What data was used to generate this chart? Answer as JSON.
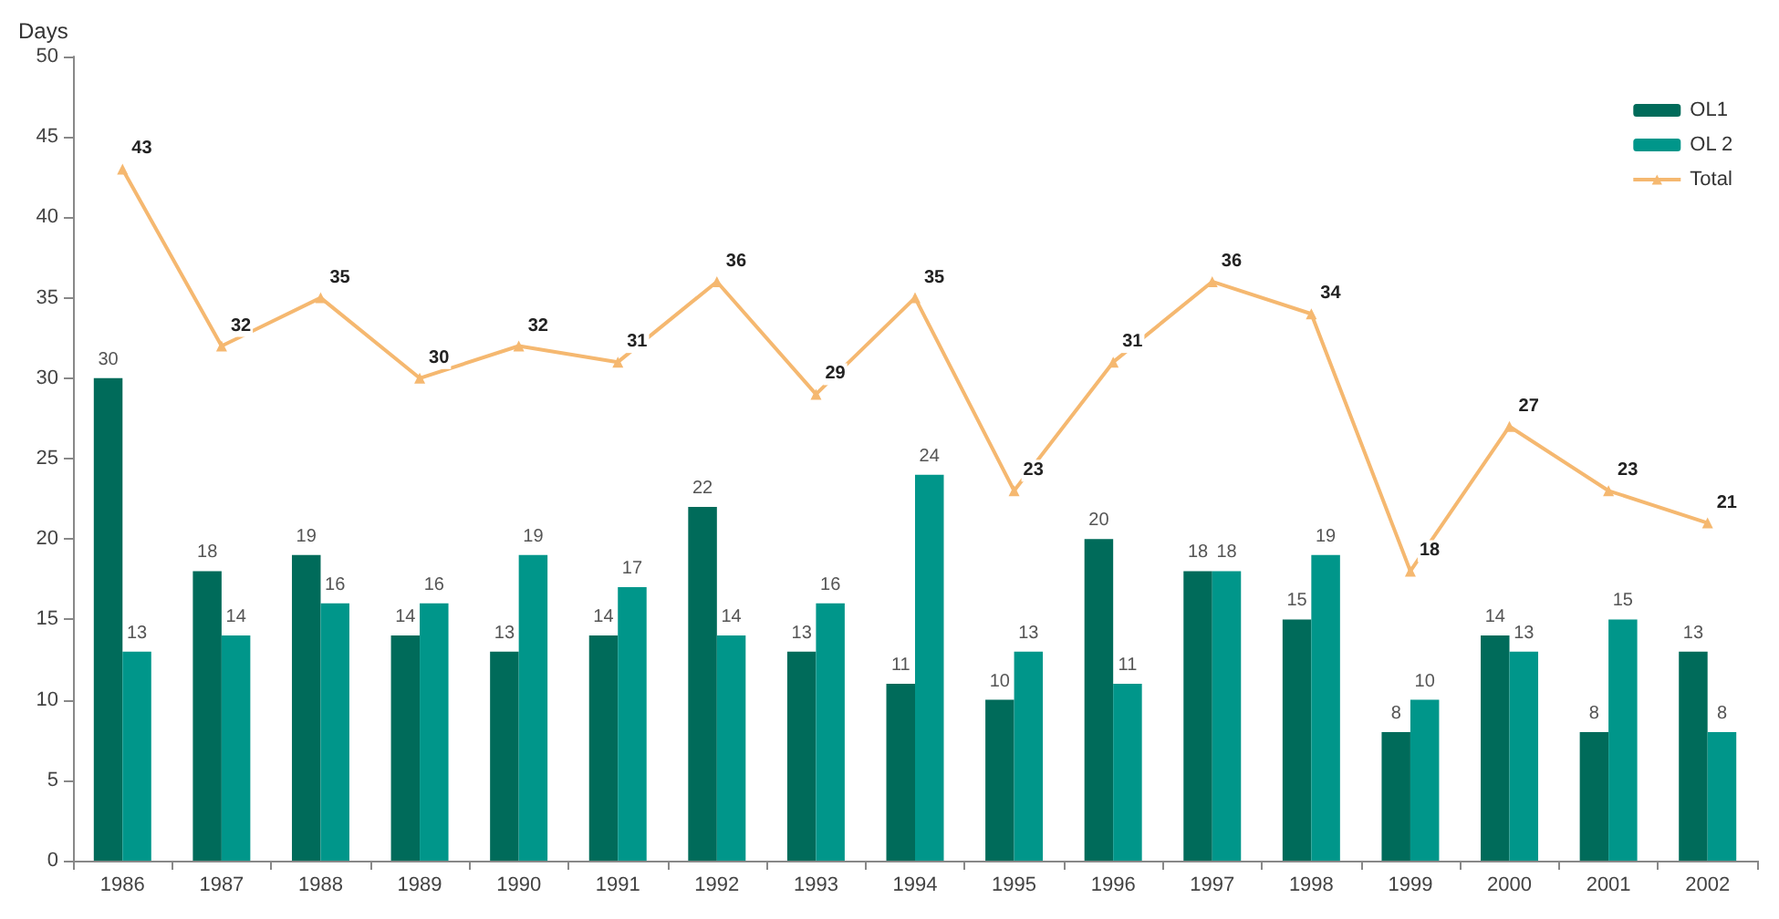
{
  "chart_data": {
    "type": "bar",
    "ylabel": "Days",
    "categories": [
      "1986",
      "1987",
      "1988",
      "1989",
      "1990",
      "1991",
      "1992",
      "1993",
      "1994",
      "1995",
      "1996",
      "1997",
      "1998",
      "1999",
      "2000",
      "2001",
      "2002"
    ],
    "series": [
      {
        "name": "OL1",
        "color": "#006b5a",
        "values": [
          30,
          18,
          19,
          14,
          13,
          14,
          22,
          13,
          11,
          10,
          20,
          18,
          15,
          8,
          14,
          8,
          13
        ]
      },
      {
        "name": "OL 2",
        "color": "#00968a",
        "values": [
          13,
          14,
          16,
          16,
          19,
          17,
          14,
          16,
          24,
          13,
          11,
          18,
          19,
          10,
          13,
          15,
          8
        ]
      },
      {
        "name": "Total",
        "type": "line",
        "color": "#f5b870",
        "marker": "triangle",
        "values": [
          43,
          32,
          35,
          30,
          32,
          31,
          36,
          29,
          35,
          23,
          31,
          36,
          34,
          18,
          27,
          23,
          21
        ]
      }
    ],
    "ylim": [
      0,
      50
    ],
    "yticks": [
      0,
      5,
      10,
      15,
      20,
      25,
      30,
      35,
      40,
      45,
      50
    ],
    "grid": false,
    "legend": "top right",
    "data_labels": true
  }
}
